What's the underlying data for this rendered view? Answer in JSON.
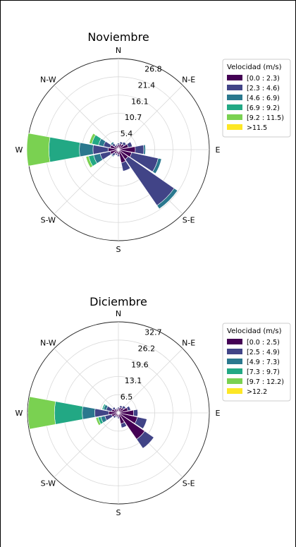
{
  "chart_data": [
    {
      "type": "windrose",
      "title": "Noviembre",
      "directions": [
        "N",
        "N-E",
        "E",
        "S-E",
        "S",
        "S-W",
        "W",
        "N-W"
      ],
      "sector_count": 16,
      "rings": [
        "5.4",
        "10.7",
        "16.1",
        "21.4",
        "26.8"
      ],
      "rmax": 26.8,
      "legend_title": "Velocidad (m/s)",
      "legend": [
        "[0.0 : 2.3)",
        "[2.3 : 4.6)",
        "[4.6 : 6.9)",
        "[6.9 : 9.2)",
        "[9.2 : 11.5)",
        ">11.5"
      ],
      "colors": [
        "#440154",
        "#414487",
        "#2a788e",
        "#22a884",
        "#7ad151",
        "#fde725"
      ],
      "sectors": [
        {
          "angle": 0,
          "values": [
            1.5,
            0.4,
            0,
            0,
            0,
            0
          ]
        },
        {
          "angle": 22.5,
          "values": [
            1.8,
            0.6,
            0,
            0,
            0,
            0
          ]
        },
        {
          "angle": 45,
          "values": [
            2.0,
            0.8,
            0,
            0,
            0,
            0
          ]
        },
        {
          "angle": 67.5,
          "values": [
            3.0,
            1.2,
            0,
            0,
            0,
            0
          ]
        },
        {
          "angle": 90,
          "values": [
            5.0,
            2.5,
            0.5,
            0,
            0,
            0
          ]
        },
        {
          "angle": 112.5,
          "values": [
            4.0,
            8.0,
            1.0,
            0,
            0,
            0
          ]
        },
        {
          "angle": 135,
          "values": [
            3.5,
            16.5,
            1.2,
            0,
            0,
            0
          ]
        },
        {
          "angle": 157.5,
          "values": [
            4.0,
            2.5,
            0,
            0,
            0,
            0
          ]
        },
        {
          "angle": 180,
          "values": [
            1.5,
            0.5,
            0,
            0,
            0,
            0
          ]
        },
        {
          "angle": 202.5,
          "values": [
            1.2,
            0.5,
            0,
            0,
            0,
            0
          ]
        },
        {
          "angle": 225,
          "values": [
            1.5,
            0.8,
            0.3,
            0,
            0,
            0
          ]
        },
        {
          "angle": 247.5,
          "values": [
            2.5,
            3.0,
            2.0,
            1.5,
            0.8,
            0
          ]
        },
        {
          "angle": 270,
          "values": [
            3.0,
            4.5,
            4.0,
            9.0,
            6.5,
            0
          ]
        },
        {
          "angle": 292.5,
          "values": [
            2.5,
            2.0,
            1.5,
            2.0,
            0.8,
            0
          ]
        },
        {
          "angle": 315,
          "values": [
            1.5,
            0.8,
            0.5,
            0,
            0,
            0
          ]
        },
        {
          "angle": 337.5,
          "values": [
            1.2,
            0.4,
            0,
            0,
            0,
            0
          ]
        }
      ]
    },
    {
      "type": "windrose",
      "title": "Diciembre",
      "directions": [
        "N",
        "N-E",
        "E",
        "S-E",
        "S",
        "S-W",
        "W",
        "N-W"
      ],
      "sector_count": 16,
      "rings": [
        "6.5",
        "13.1",
        "19.6",
        "26.2",
        "32.7"
      ],
      "rmax": 32.7,
      "legend_title": "Velocidad (m/s)",
      "legend": [
        "[0.0 : 2.5)",
        "[2.5 : 4.9)",
        "[4.9 : 7.3)",
        "[7.3 : 9.7)",
        "[9.7 : 12.2)",
        ">12.2"
      ],
      "colors": [
        "#440154",
        "#414487",
        "#2a788e",
        "#22a884",
        "#7ad151",
        "#fde725"
      ],
      "sectors": [
        {
          "angle": 0,
          "values": [
            1.5,
            0.5,
            0,
            0,
            0,
            0
          ]
        },
        {
          "angle": 22.5,
          "values": [
            2.0,
            0.7,
            0,
            0,
            0,
            0
          ]
        },
        {
          "angle": 45,
          "values": [
            2.3,
            0.9,
            0,
            0,
            0,
            0
          ]
        },
        {
          "angle": 67.5,
          "values": [
            3.5,
            1.0,
            0,
            0,
            0,
            0
          ]
        },
        {
          "angle": 90,
          "values": [
            5.5,
            1.5,
            0,
            0,
            0,
            0
          ]
        },
        {
          "angle": 112.5,
          "values": [
            7.0,
            3.5,
            0,
            0,
            0,
            0
          ]
        },
        {
          "angle": 135,
          "values": [
            11.5,
            4.0,
            0,
            0,
            0,
            0
          ]
        },
        {
          "angle": 157.5,
          "values": [
            4.0,
            1.5,
            0,
            0,
            0,
            0
          ]
        },
        {
          "angle": 180,
          "values": [
            1.5,
            0.5,
            0,
            0,
            0,
            0
          ]
        },
        {
          "angle": 202.5,
          "values": [
            1.3,
            0.4,
            0,
            0,
            0,
            0
          ]
        },
        {
          "angle": 225,
          "values": [
            1.5,
            0.8,
            0,
            0,
            0,
            0
          ]
        },
        {
          "angle": 247.5,
          "values": [
            2.5,
            2.5,
            1.5,
            1.0,
            0.8,
            0
          ]
        },
        {
          "angle": 270,
          "values": [
            3.5,
            5.0,
            4.5,
            10.0,
            9.5,
            0
          ]
        },
        {
          "angle": 292.5,
          "values": [
            2.5,
            2.0,
            1.0,
            0.5,
            0,
            0
          ]
        },
        {
          "angle": 315,
          "values": [
            1.8,
            0.8,
            0,
            0,
            0,
            0
          ]
        },
        {
          "angle": 337.5,
          "values": [
            1.3,
            0.4,
            0,
            0,
            0,
            0
          ]
        }
      ]
    }
  ]
}
